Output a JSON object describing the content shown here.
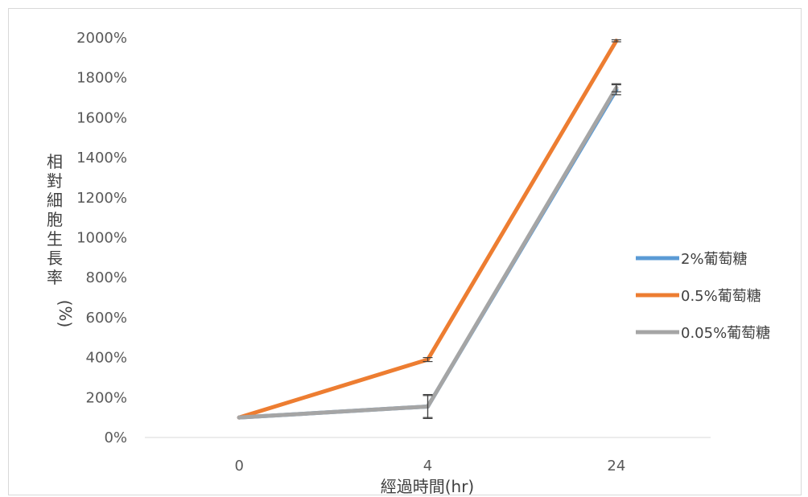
{
  "chart_data": {
    "type": "line",
    "title": "",
    "xlabel": "經過時間(hr)",
    "ylabel": "相對細胞生長率(%)",
    "categories": [
      "0",
      "4",
      "24"
    ],
    "ylim": [
      0,
      2000
    ],
    "y_ticks": [
      "0%",
      "200%",
      "400%",
      "600%",
      "800%",
      "1000%",
      "1200%",
      "1400%",
      "1600%",
      "1800%",
      "2000%"
    ],
    "grid": false,
    "legend_position": "right",
    "series": [
      {
        "name": "2%葡萄糖",
        "color": "#5B9BD5",
        "values": [
          100,
          155,
          1740
        ],
        "errors": [
          0,
          55,
          25
        ]
      },
      {
        "name": "0.5%葡萄糖",
        "color": "#ED7D31",
        "values": [
          100,
          390,
          1985
        ],
        "errors": [
          0,
          10,
          5
        ]
      },
      {
        "name": "0.05%葡萄糖",
        "color": "#A5A5A5",
        "values": [
          100,
          155,
          1750
        ],
        "errors": [
          0,
          60,
          20
        ]
      }
    ]
  }
}
